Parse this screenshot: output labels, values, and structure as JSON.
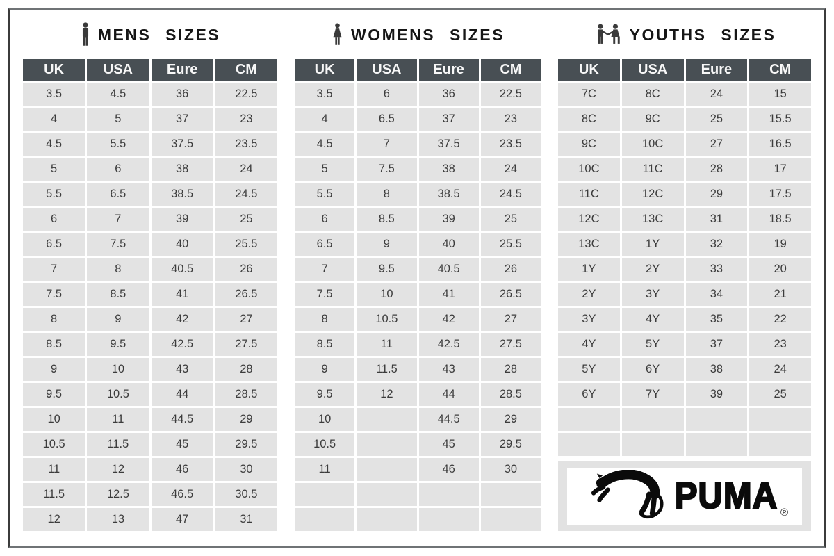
{
  "colors": {
    "header_bg": "#484f54",
    "header_text": "#f7f7f7",
    "row_bg": "#e3e3e3",
    "cell_text": "#3c3c3c",
    "title_text": "#161616",
    "logo_band_bg": "#e2e2e2",
    "frame_border": "#6f7375"
  },
  "chart_data": [
    {
      "type": "table",
      "title": "MENS SIZES",
      "icon": "man-icon",
      "columns": [
        "UK",
        "USA",
        "Eure",
        "CM"
      ],
      "rows": [
        [
          "3.5",
          "4.5",
          "36",
          "22.5"
        ],
        [
          "4",
          "5",
          "37",
          "23"
        ],
        [
          "4.5",
          "5.5",
          "37.5",
          "23.5"
        ],
        [
          "5",
          "6",
          "38",
          "24"
        ],
        [
          "5.5",
          "6.5",
          "38.5",
          "24.5"
        ],
        [
          "6",
          "7",
          "39",
          "25"
        ],
        [
          "6.5",
          "7.5",
          "40",
          "25.5"
        ],
        [
          "7",
          "8",
          "40.5",
          "26"
        ],
        [
          "7.5",
          "8.5",
          "41",
          "26.5"
        ],
        [
          "8",
          "9",
          "42",
          "27"
        ],
        [
          "8.5",
          "9.5",
          "42.5",
          "27.5"
        ],
        [
          "9",
          "10",
          "43",
          "28"
        ],
        [
          "9.5",
          "10.5",
          "44",
          "28.5"
        ],
        [
          "10",
          "11",
          "44.5",
          "29"
        ],
        [
          "10.5",
          "11.5",
          "45",
          "29.5"
        ],
        [
          "11",
          "12",
          "46",
          "30"
        ],
        [
          "11.5",
          "12.5",
          "46.5",
          "30.5"
        ],
        [
          "12",
          "13",
          "47",
          "31"
        ]
      ],
      "empty_rows": 0
    },
    {
      "type": "table",
      "title": "WOMENS SIZES",
      "icon": "woman-icon",
      "columns": [
        "UK",
        "USA",
        "Eure",
        "CM"
      ],
      "rows": [
        [
          "3.5",
          "6",
          "36",
          "22.5"
        ],
        [
          "4",
          "6.5",
          "37",
          "23"
        ],
        [
          "4.5",
          "7",
          "37.5",
          "23.5"
        ],
        [
          "5",
          "7.5",
          "38",
          "24"
        ],
        [
          "5.5",
          "8",
          "38.5",
          "24.5"
        ],
        [
          "6",
          "8.5",
          "39",
          "25"
        ],
        [
          "6.5",
          "9",
          "40",
          "25.5"
        ],
        [
          "7",
          "9.5",
          "40.5",
          "26"
        ],
        [
          "7.5",
          "10",
          "41",
          "26.5"
        ],
        [
          "8",
          "10.5",
          "42",
          "27"
        ],
        [
          "8.5",
          "11",
          "42.5",
          "27.5"
        ],
        [
          "9",
          "11.5",
          "43",
          "28"
        ],
        [
          "9.5",
          "12",
          "44",
          "28.5"
        ],
        [
          "10",
          "",
          "44.5",
          "29"
        ],
        [
          "10.5",
          "",
          "45",
          "29.5"
        ],
        [
          "11",
          "",
          "46",
          "30"
        ]
      ],
      "empty_rows": 2
    },
    {
      "type": "table",
      "title": "YOUTHS SIZES",
      "icon": "children-icon",
      "columns": [
        "UK",
        "USA",
        "Eure",
        "CM"
      ],
      "rows": [
        [
          "7C",
          "8C",
          "24",
          "15"
        ],
        [
          "8C",
          "9C",
          "25",
          "15.5"
        ],
        [
          "9C",
          "10C",
          "27",
          "16.5"
        ],
        [
          "10C",
          "11C",
          "28",
          "17"
        ],
        [
          "11C",
          "12C",
          "29",
          "17.5"
        ],
        [
          "12C",
          "13C",
          "31",
          "18.5"
        ],
        [
          "13C",
          "1Y",
          "32",
          "19"
        ],
        [
          "1Y",
          "2Y",
          "33",
          "20"
        ],
        [
          "2Y",
          "3Y",
          "34",
          "21"
        ],
        [
          "3Y",
          "4Y",
          "35",
          "22"
        ],
        [
          "4Y",
          "5Y",
          "37",
          "23"
        ],
        [
          "5Y",
          "6Y",
          "38",
          "24"
        ],
        [
          "6Y",
          "7Y",
          "39",
          "25"
        ]
      ],
      "empty_rows": 2
    }
  ],
  "logo": {
    "brand": "PUMA",
    "registered_mark": "®"
  }
}
